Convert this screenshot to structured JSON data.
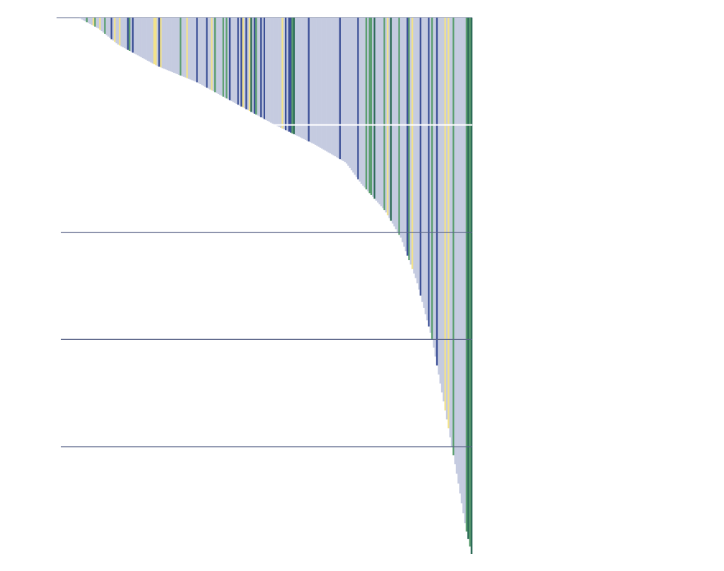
{
  "chart_data": {
    "type": "bar",
    "orientation": "vertical-bars-hanging-from-top",
    "sorted": "ascending-length-left-to-right",
    "title": "",
    "xlabel": "",
    "ylabel": "",
    "grid": true,
    "gridline_values": [
      -1,
      -2,
      -3,
      -4
    ],
    "ylim": [
      -5,
      0
    ],
    "baseline_value": 0,
    "colors": {
      "bar_default": "#c5cbe0",
      "highlight_categories": {
        "navy": "#3b4f96",
        "green": "#5a9e6f",
        "yellow": "#f2e28a",
        "teal": "#2d6b57"
      },
      "gridline": "#5a6488",
      "background": "#ffffff"
    },
    "bar_count": 240,
    "depth_profile_control_points": [
      [
        0,
        0.0
      ],
      [
        0.05,
        0.1
      ],
      [
        0.1,
        0.25
      ],
      [
        0.15,
        0.35
      ],
      [
        0.2,
        0.45
      ],
      [
        0.3,
        0.6
      ],
      [
        0.4,
        0.8
      ],
      [
        0.5,
        1.0
      ],
      [
        0.6,
        1.18
      ],
      [
        0.68,
        1.35
      ],
      [
        0.72,
        1.55
      ],
      [
        0.78,
        1.8
      ],
      [
        0.82,
        2.05
      ],
      [
        0.86,
        2.45
      ],
      [
        0.9,
        3.0
      ],
      [
        0.93,
        3.6
      ],
      [
        0.96,
        4.2
      ],
      [
        0.985,
        4.75
      ],
      [
        1.0,
        5.0
      ]
    ],
    "highlight_pattern_seed": 17
  }
}
